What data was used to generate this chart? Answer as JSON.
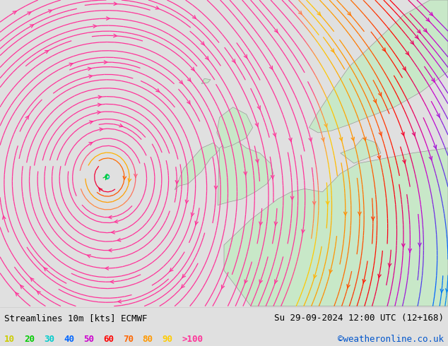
{
  "title_left": "Streamlines 10m [kts] ECMWF",
  "title_right": "Su 29-09-2024 12:00 UTC (12+168)",
  "credit": "©weatheronline.co.uk",
  "legend_values": [
    "10",
    "20",
    "30",
    "40",
    "50",
    "60",
    "70",
    "80",
    "90",
    ">100"
  ],
  "legend_colors": [
    "#cccc00",
    "#00cc00",
    "#00cccc",
    "#0066ff",
    "#cc00cc",
    "#ff0000",
    "#ff6600",
    "#ff9900",
    "#ffcc00",
    "#ff3399"
  ],
  "bg_color": "#e0e0e0",
  "land_color": "#c8e8c8",
  "coast_color": "#999999",
  "text_color": "#000000",
  "title_fontsize": 9,
  "legend_fontsize": 9,
  "fig_width": 6.34,
  "fig_height": 4.9,
  "xlim": [
    -30,
    20
  ],
  "ylim": [
    40,
    70
  ]
}
